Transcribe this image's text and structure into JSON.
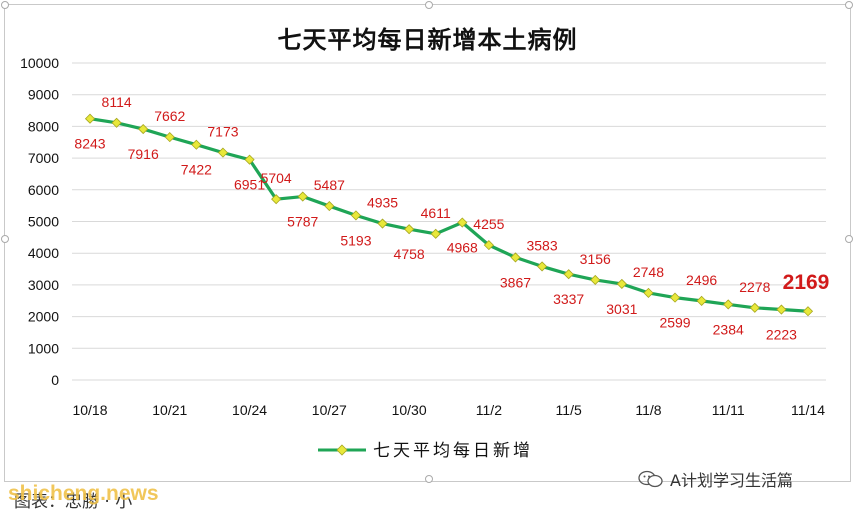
{
  "chart_data": {
    "type": "line",
    "title": "七天平均每日新增本土病例",
    "x_tick_labels": [
      "10/18",
      "10/21",
      "10/24",
      "10/27",
      "10/30",
      "11/2",
      "11/5",
      "11/8",
      "11/11",
      "11/14"
    ],
    "y_ticks": [
      0,
      1000,
      2000,
      3000,
      4000,
      5000,
      6000,
      7000,
      8000,
      9000,
      10000
    ],
    "ylim": [
      0,
      10000
    ],
    "grid": true,
    "legend_position": "bottom",
    "series": [
      {
        "name": "七天平均每日新增",
        "color": "#1fa556",
        "marker_color": "#e8e83a",
        "x": [
          "10/18",
          "10/19",
          "10/20",
          "10/21",
          "10/22",
          "10/23",
          "10/24",
          "10/25",
          "10/26",
          "10/27",
          "10/28",
          "10/29",
          "10/30",
          "10/31",
          "11/1",
          "11/2",
          "11/3",
          "11/4",
          "11/5",
          "11/6",
          "11/7",
          "11/8",
          "11/9",
          "11/10",
          "11/11",
          "11/12",
          "11/13",
          "11/14"
        ],
        "values": [
          8243,
          8114,
          7916,
          7662,
          7422,
          7173,
          6951,
          5704,
          5787,
          5487,
          5193,
          4935,
          4758,
          4611,
          4968,
          4255,
          3867,
          3583,
          3337,
          3156,
          3031,
          2748,
          2599,
          2496,
          2384,
          2278,
          2223,
          2169
        ],
        "label_side": [
          "below",
          "above",
          "below",
          "above",
          "below",
          "above",
          "below",
          "above",
          "below",
          "above",
          "below",
          "above",
          "below",
          "above",
          "below",
          "above",
          "below",
          "above",
          "below",
          "above",
          "below",
          "above",
          "below",
          "above",
          "below",
          "above",
          "below",
          "above"
        ]
      }
    ]
  },
  "caption": "图表：",
  "caption_rest": "忠勝 · 小",
  "watermark": "shicheng.news",
  "wechat_account": "A计划学习生活篇",
  "colors": {
    "line": "#1fa556",
    "marker": "#e8e83a",
    "label": "#d11a1a"
  }
}
